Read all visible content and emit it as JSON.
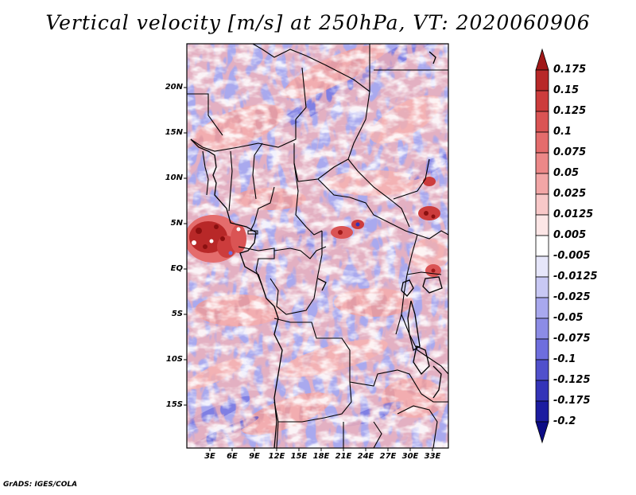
{
  "title": "Vertical velocity [m/s] at 250hPa, VT: 2020060906",
  "credit": "GrADS: IGES/COLA",
  "map": {
    "field": "Vertical velocity",
    "units": "m/s",
    "level": "250hPa",
    "valid_time": "2020060906",
    "lat_labels": [
      "20N",
      "15N",
      "10N",
      "5N",
      "EQ",
      "5S",
      "10S",
      "15S"
    ],
    "lon_labels": [
      "3E",
      "6E",
      "9E",
      "12E",
      "15E",
      "18E",
      "21E",
      "24E",
      "27E",
      "30E",
      "33E"
    ]
  },
  "colorbar": {
    "labels": [
      "0.175",
      "0.15",
      "0.125",
      "0.1",
      "0.075",
      "0.05",
      "0.025",
      "0.0125",
      "0.005",
      "-0.005",
      "-0.0125",
      "-0.025",
      "-0.05",
      "-0.075",
      "-0.1",
      "-0.125",
      "-0.175",
      "-0.2"
    ],
    "colors": [
      "#a01818",
      "#b82828",
      "#cc3c3c",
      "#da5454",
      "#e46c6c",
      "#ec8888",
      "#f2a6a6",
      "#f8c8c8",
      "#fce6e6",
      "#ffffff",
      "#e6e6fa",
      "#c8c8f4",
      "#a8a8ee",
      "#8c8ce6",
      "#6e6ede",
      "#5050cc",
      "#3434b8",
      "#1c1ca0",
      "#0c0c86"
    ]
  }
}
